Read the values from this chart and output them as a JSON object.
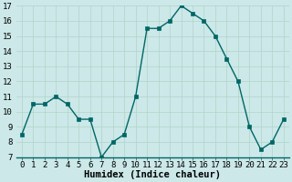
{
  "x": [
    0,
    1,
    2,
    3,
    4,
    5,
    6,
    7,
    8,
    9,
    10,
    11,
    12,
    13,
    14,
    15,
    16,
    17,
    18,
    19,
    20,
    21,
    22,
    23
  ],
  "y": [
    8.5,
    10.5,
    10.5,
    11.0,
    10.5,
    9.5,
    9.5,
    7.0,
    8.0,
    8.5,
    11.0,
    15.5,
    15.5,
    16.0,
    17.0,
    16.5,
    16.0,
    15.0,
    13.5,
    12.0,
    9.0,
    7.5,
    8.0,
    9.5
  ],
  "line_color": "#006666",
  "marker_color": "#006666",
  "bg_color": "#cce8e8",
  "grid_color": "#b0d4c8",
  "axis_line_color": "#006666",
  "xlabel": "Humidex (Indice chaleur)",
  "ylim": [
    7,
    17
  ],
  "xlim": [
    -0.5,
    23.5
  ],
  "yticks": [
    7,
    8,
    9,
    10,
    11,
    12,
    13,
    14,
    15,
    16,
    17
  ],
  "xticks": [
    0,
    1,
    2,
    3,
    4,
    5,
    6,
    7,
    8,
    9,
    10,
    11,
    12,
    13,
    14,
    15,
    16,
    17,
    18,
    19,
    20,
    21,
    22,
    23
  ],
  "xlabel_fontsize": 7.5,
  "tick_fontsize": 6.5,
  "line_width": 1.0,
  "marker_size": 2.5
}
